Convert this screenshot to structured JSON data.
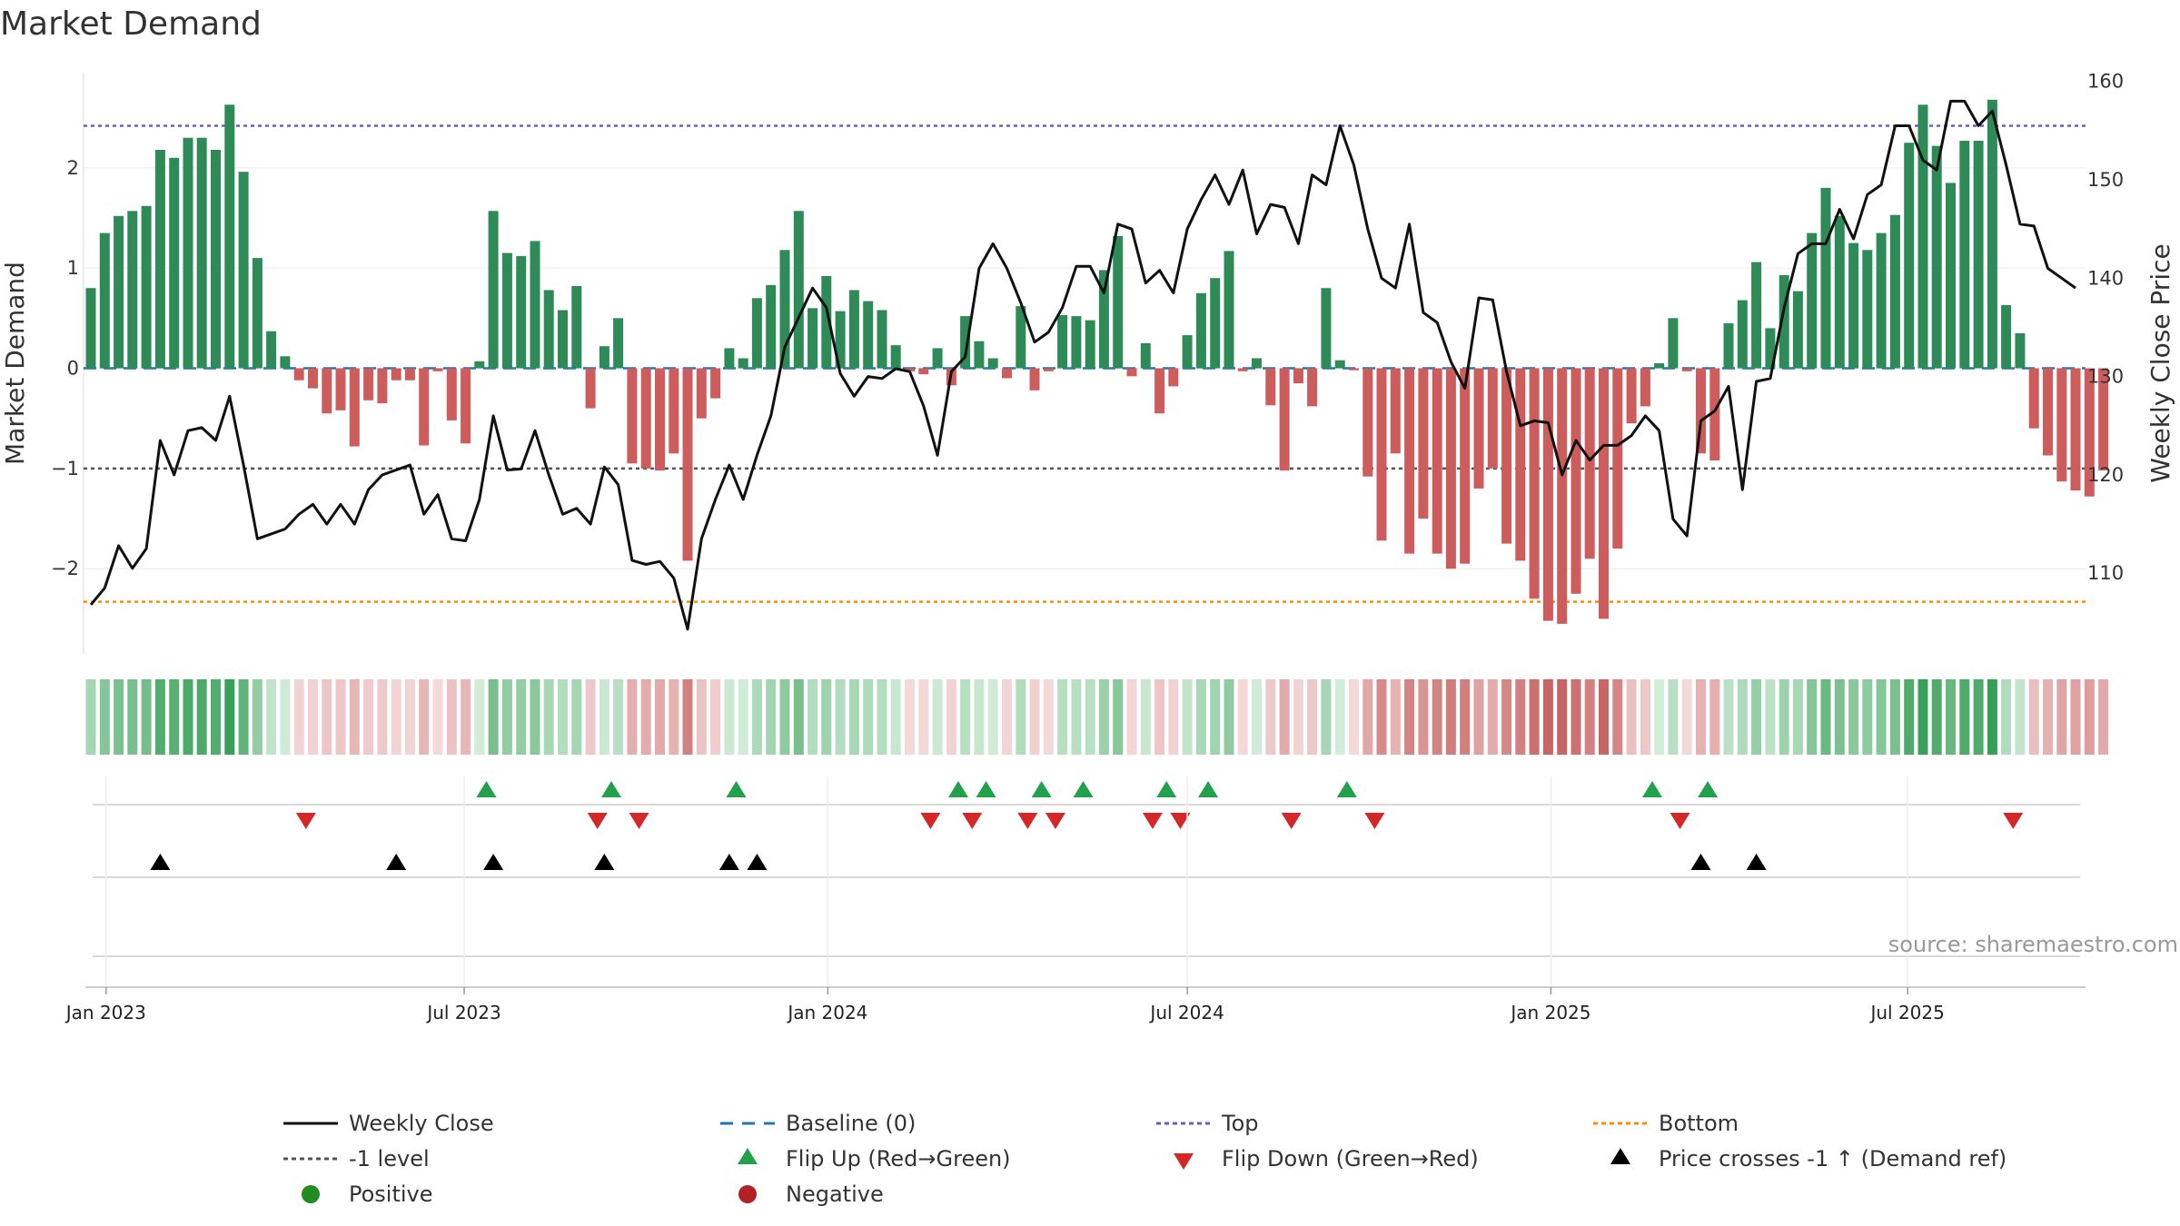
{
  "chart_data": {
    "type": "bar+line",
    "title": "Market Demand",
    "ylabel_left": "Market Demand",
    "ylabel_right": "Weekly Close Price",
    "ylim_left": [
      -2.85,
      2.95
    ],
    "ylim_right": [
      101.8,
      160.9
    ],
    "left_ticks": [
      -2,
      -1,
      0,
      1,
      2
    ],
    "left_tick_labels": [
      "−2",
      "−1",
      "0",
      "1",
      "2"
    ],
    "right_ticks": [
      110,
      120,
      130,
      140,
      150,
      160
    ],
    "right_tick_labels": [
      "110",
      "120",
      "130",
      "140",
      "150",
      "160"
    ],
    "start_week": "2022-12-26",
    "week_count": 143,
    "date_ticks": [
      "Jan 2023",
      "Jul 2023",
      "Jan 2024",
      "Jul 2024",
      "Jan 2025",
      "Jul 2025"
    ],
    "date_tick_weeks": [
      1.1,
      26.9,
      53.1,
      79.0,
      105.2,
      130.9
    ],
    "reference_lines": {
      "top": 2.42,
      "bottom": -2.33,
      "minus_one": -1,
      "baseline": 0
    },
    "demand": [
      0.8,
      1.35,
      1.52,
      1.57,
      1.62,
      2.18,
      2.1,
      2.3,
      2.3,
      2.18,
      2.63,
      1.96,
      1.1,
      0.37,
      0.12,
      -0.12,
      -0.2,
      -0.45,
      -0.42,
      -0.78,
      -0.32,
      -0.35,
      -0.12,
      -0.12,
      -0.77,
      -0.03,
      -0.52,
      -0.75,
      0.07,
      1.57,
      1.15,
      1.12,
      1.27,
      0.78,
      0.58,
      0.82,
      -0.4,
      0.22,
      0.5,
      -0.95,
      -1.0,
      -1.02,
      -0.85,
      -1.92,
      -0.5,
      -0.3,
      0.2,
      0.1,
      0.7,
      0.83,
      1.18,
      1.57,
      0.6,
      0.92,
      0.57,
      0.78,
      0.67,
      0.58,
      0.23,
      -0.03,
      -0.06,
      0.2,
      -0.17,
      0.52,
      0.27,
      0.1,
      -0.1,
      0.62,
      -0.22,
      -0.03,
      0.53,
      0.52,
      0.48,
      0.98,
      1.32,
      -0.08,
      0.25,
      -0.45,
      -0.18,
      0.33,
      0.75,
      0.9,
      1.17,
      -0.03,
      0.1,
      -0.37,
      -1.02,
      -0.15,
      -0.38,
      0.8,
      0.08,
      -0.02,
      -1.08,
      -1.72,
      -0.85,
      -1.85,
      -1.5,
      -1.85,
      -2.0,
      -1.95,
      -1.2,
      -1.0,
      -1.75,
      -1.92,
      -2.3,
      -2.52,
      -2.55,
      -2.25,
      -1.9,
      -2.5,
      -1.8,
      -0.55,
      -0.38,
      0.05,
      0.5,
      -0.03,
      -0.85,
      -0.92,
      0.45,
      0.68,
      1.06,
      0.4,
      0.93,
      0.77,
      1.35,
      1.8,
      1.52,
      1.25,
      1.18,
      1.35,
      1.53,
      2.25,
      2.63,
      2.22,
      1.85,
      2.27,
      2.27,
      2.68,
      0.63,
      0.35,
      -0.6,
      -0.87,
      -1.13,
      -1.22,
      -1.28,
      -1.02
    ],
    "weekly_close": [
      106.8,
      108.5,
      112.8,
      110.5,
      112.5,
      123.5,
      120,
      124.5,
      124.8,
      123.5,
      128,
      121,
      113.5,
      114,
      114.5,
      116,
      117,
      115,
      117,
      115,
      118.5,
      120,
      120.5,
      121,
      116,
      118,
      113.5,
      113.3,
      117.5,
      126,
      120.5,
      120.6,
      124.5,
      120,
      116,
      116.6,
      115,
      120.8,
      119,
      111.3,
      110.9,
      111.2,
      109.5,
      104.3,
      113.5,
      117.5,
      121,
      117.5,
      122,
      126,
      133,
      136,
      139,
      137,
      130.3,
      128,
      130,
      129.8,
      130.8,
      130.5,
      127,
      122,
      130.5,
      132,
      141,
      143.5,
      141,
      137.5,
      133.5,
      134.5,
      137,
      141.2,
      141.2,
      138.5,
      145.5,
      145,
      139.5,
      140.8,
      138.5,
      145,
      148,
      150.5,
      147.5,
      151,
      144.5,
      147.5,
      147.2,
      143.5,
      150.5,
      149.5,
      155.5,
      151.5,
      145,
      140,
      139,
      145.5,
      136.5,
      135.5,
      131.5,
      128.8,
      138,
      137.8,
      130.5,
      125,
      125.5,
      125.3,
      120,
      123.5,
      121.5,
      123,
      123,
      124,
      126,
      124.5,
      115.5,
      113.8,
      125.5,
      126.5,
      129,
      118.5,
      129.5,
      129.8,
      137,
      142.5,
      143.5,
      143.5,
      147,
      144,
      148.5,
      149.5,
      155.5,
      155.5,
      152,
      151,
      158,
      158,
      155.5,
      157,
      151.5,
      145.5,
      145.3,
      141,
      140,
      139
    ],
    "heatmap_values": [
      0.8,
      1.35,
      1.52,
      1.57,
      1.62,
      2.18,
      2.1,
      2.3,
      2.3,
      2.18,
      2.63,
      1.96,
      1.1,
      0.37,
      0.12,
      -0.12,
      -0.2,
      -0.45,
      -0.42,
      -0.78,
      -0.32,
      -0.35,
      -0.12,
      -0.12,
      -0.77,
      -0.03,
      -0.52,
      -0.75,
      0.07,
      1.57,
      1.15,
      1.12,
      1.27,
      0.78,
      0.58,
      0.82,
      -0.4,
      0.22,
      0.5,
      -0.95,
      -1.0,
      -1.02,
      -0.85,
      -1.92,
      -0.5,
      -0.3,
      0.2,
      0.1,
      0.7,
      0.83,
      1.18,
      1.57,
      0.6,
      0.92,
      0.57,
      0.78,
      0.67,
      0.58,
      0.23,
      -0.03,
      -0.06,
      0.2,
      -0.17,
      0.52,
      0.27,
      0.1,
      -0.1,
      0.62,
      -0.22,
      -0.03,
      0.53,
      0.52,
      0.48,
      0.98,
      1.32,
      -0.08,
      0.25,
      -0.45,
      -0.18,
      0.33,
      0.75,
      0.9,
      1.17,
      -0.03,
      0.1,
      -0.37,
      -1.02,
      -0.15,
      -0.38,
      0.8,
      0.08,
      -0.02,
      -1.08,
      -1.72,
      -0.85,
      -1.85,
      -1.5,
      -1.85,
      -2.0,
      -1.95,
      -1.2,
      -1.0,
      -1.75,
      -1.92,
      -2.3,
      -2.52,
      -2.55,
      -2.25,
      -1.9,
      -2.5,
      -1.8,
      -0.55,
      -0.38,
      0.05,
      0.5,
      -0.03,
      -0.85,
      -0.92,
      0.45,
      0.68,
      1.06,
      0.4,
      0.93,
      0.77,
      1.35,
      1.8,
      1.52,
      1.25,
      1.18,
      1.35,
      1.53,
      2.25,
      2.63,
      2.22,
      1.85,
      2.27,
      2.27,
      2.68,
      0.63,
      0.35,
      -0.6,
      -0.87,
      -1.13,
      -1.22,
      -1.28,
      -1.02
    ],
    "flip_up_weeks": [
      28.5,
      37.5,
      46.5,
      62.5,
      64.5,
      68.5,
      71.5,
      77.5,
      80.5,
      90.5,
      112.5,
      116.5
    ],
    "flip_down_weeks": [
      15.5,
      36.5,
      39.5,
      60.5,
      63.5,
      67.5,
      69.5,
      76.5,
      78.5,
      86.5,
      92.5,
      114.5,
      138.5
    ],
    "price_cross_weeks": [
      5,
      22,
      29,
      37,
      46,
      48,
      116,
      120
    ],
    "colors": {
      "positive_bar": "#2e8b57",
      "negative_bar": "#cd5c5c",
      "close_line": "#111111",
      "baseline": "#1f77b4",
      "top_line": "#6a5acd",
      "bottom_line": "#ff8c00",
      "minus_one_line": "#555555",
      "flip_up": "#22a04b",
      "flip_down": "#d62728",
      "price_cross": "#000000",
      "positive_marker": "#228b22",
      "negative_marker": "#b22222"
    }
  },
  "source": "source: sharemaestro.com",
  "legend": [
    {
      "label": "Weekly Close",
      "kind": "line-solid",
      "color": "#111111"
    },
    {
      "label": "Baseline (0)",
      "kind": "line-dash",
      "color": "#1f77b4"
    },
    {
      "label": "Top",
      "kind": "line-dot",
      "color": "#6a5acd"
    },
    {
      "label": "Bottom",
      "kind": "line-dot",
      "color": "#ff8c00"
    },
    {
      "label": "-1 level",
      "kind": "line-dot",
      "color": "#555555"
    },
    {
      "label": "Flip Up (Red→Green)",
      "kind": "triangle-up",
      "color": "#22a04b"
    },
    {
      "label": "Flip Down (Green→Red)",
      "kind": "triangle-down",
      "color": "#d62728"
    },
    {
      "label": "Price crosses -1 ↑ (Demand ref)",
      "kind": "triangle-up",
      "color": "#000000"
    },
    {
      "label": "Positive",
      "kind": "circle",
      "color": "#228b22"
    },
    {
      "label": "Negative",
      "kind": "circle",
      "color": "#b22222"
    }
  ]
}
